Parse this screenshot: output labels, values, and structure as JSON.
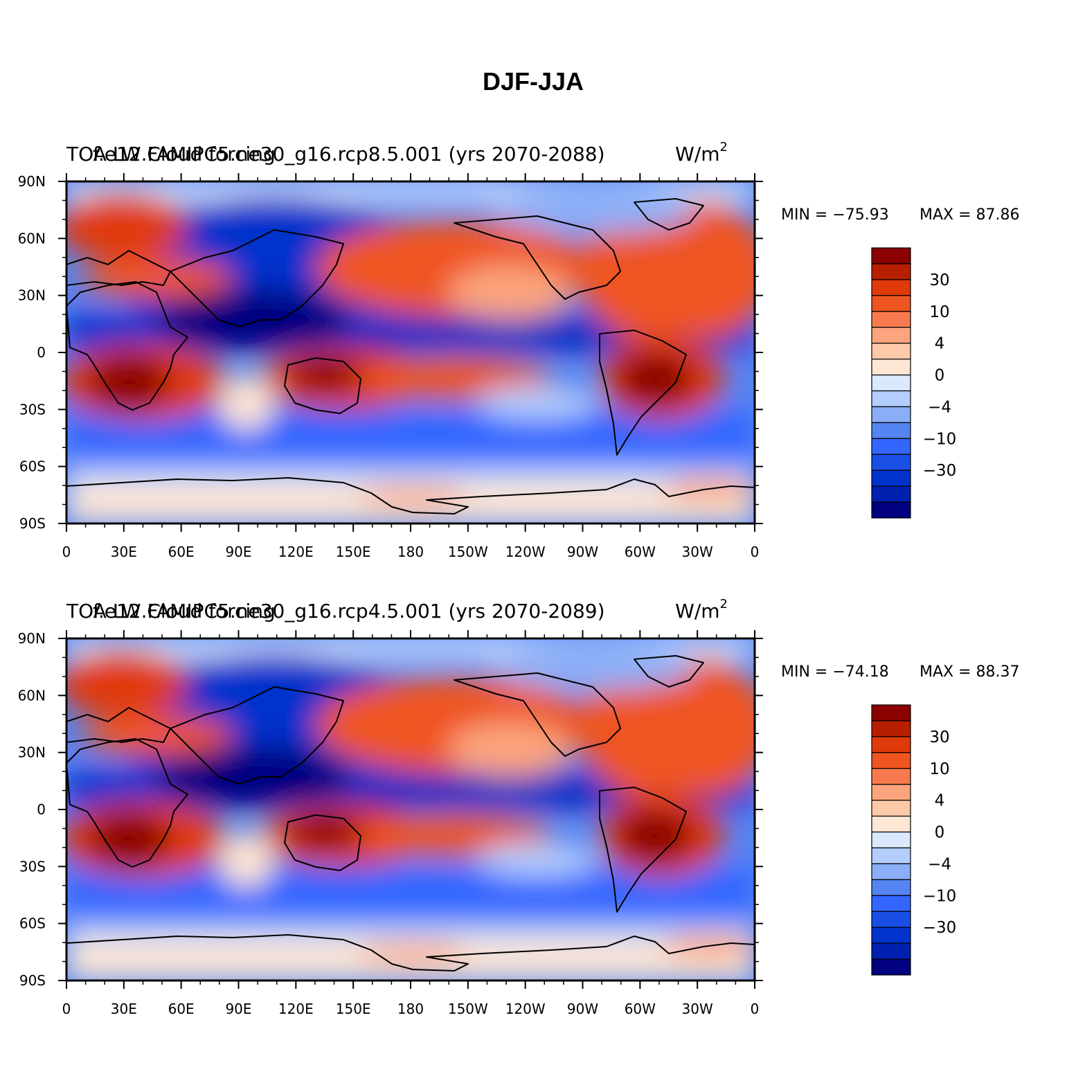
{
  "figure": {
    "title": "DJF-JJA",
    "lat_labels": [
      "90N",
      "60N",
      "30N",
      "0",
      "30S",
      "60S",
      "90S"
    ],
    "lon_labels": [
      "0",
      "30E",
      "60E",
      "90E",
      "120E",
      "150E",
      "180",
      "150W",
      "120W",
      "90W",
      "60W",
      "30W",
      "0"
    ]
  },
  "colors": {
    "negative": [
      "#000080",
      "#0020b0",
      "#0033cc",
      "#1a4fe6",
      "#3366ff",
      "#5585f2",
      "#8aaff8",
      "#b3cdfc",
      "#dbe9ff"
    ],
    "positive": [
      "#fde6d4",
      "#fcc9a9",
      "#fba47d",
      "#f77a4e",
      "#ef5520",
      "#e03a0a",
      "#b81e00",
      "#8b0000"
    ],
    "land": "#000000"
  },
  "panels": [
    {
      "left_title": "TOA LW Cloud forcing",
      "center_title": "f.e12.FAMIPC5.ne30_g16.rcp8.5.001 (yrs 2070-2088)",
      "units": "W/m",
      "units_exp": "2",
      "min_label": "MIN = −75.93",
      "max_label": "MAX =  87.86",
      "legend_labels": [
        "30",
        "10",
        "4",
        "0",
        "−4",
        "−10",
        "−30"
      ]
    },
    {
      "left_title": "TOA LW Cloud forcing",
      "center_title": "f.e12.FAMIPC5.ne30_g16.rcp4.5.001 (yrs 2070-2089)",
      "units": "W/m",
      "units_exp": "2",
      "min_label": "MIN = −74.18",
      "max_label": "MAX =  88.37",
      "legend_labels": [
        "30",
        "10",
        "4",
        "0",
        "−4",
        "−10",
        "−30"
      ]
    }
  ]
}
